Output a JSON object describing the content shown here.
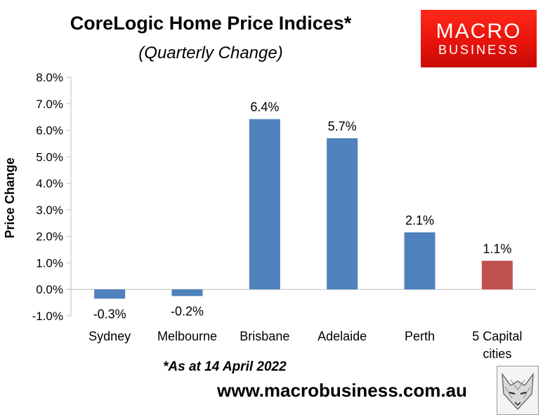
{
  "header": {
    "title": "CoreLogic Home Price Indices*",
    "subtitle": "(Quarterly Change)"
  },
  "logo": {
    "line1": "MACRO",
    "line2": "BUSINESS"
  },
  "footer": {
    "footnote": "*As at 14 April 2022",
    "url": "www.macrobusiness.com.au"
  },
  "colors": {
    "bar": "#4f81bd",
    "highlight": "#c0504d",
    "logo": "#e8140c"
  },
  "chart_data": {
    "type": "bar",
    "title": "CoreLogic Home Price Indices*",
    "subtitle": "(Quarterly Change)",
    "xlabel": "",
    "ylabel": "Price Change",
    "categories": [
      "Sydney",
      "Melbourne",
      "Brisbane",
      "Adelaide",
      "Perth",
      "5 Capital cities"
    ],
    "category_lines": [
      [
        "Sydney"
      ],
      [
        "Melbourne"
      ],
      [
        "Brisbane"
      ],
      [
        "Adelaide"
      ],
      [
        "Perth"
      ],
      [
        "5 Capital",
        "cities"
      ]
    ],
    "values": [
      -0.35,
      -0.25,
      6.42,
      5.7,
      2.15,
      1.08
    ],
    "data_labels": [
      "-0.3%",
      "-0.2%",
      "6.4%",
      "5.7%",
      "2.1%",
      "1.1%"
    ],
    "highlight_index": 5,
    "ylim": [
      -1,
      8
    ],
    "yticks": [
      -1,
      0,
      1,
      2,
      3,
      4,
      5,
      6,
      7,
      8
    ],
    "ytick_labels": [
      "-1.0%",
      "0.0%",
      "1.0%",
      "2.0%",
      "3.0%",
      "4.0%",
      "5.0%",
      "6.0%",
      "7.0%",
      "8.0%"
    ],
    "grid": false,
    "legend": "none"
  }
}
